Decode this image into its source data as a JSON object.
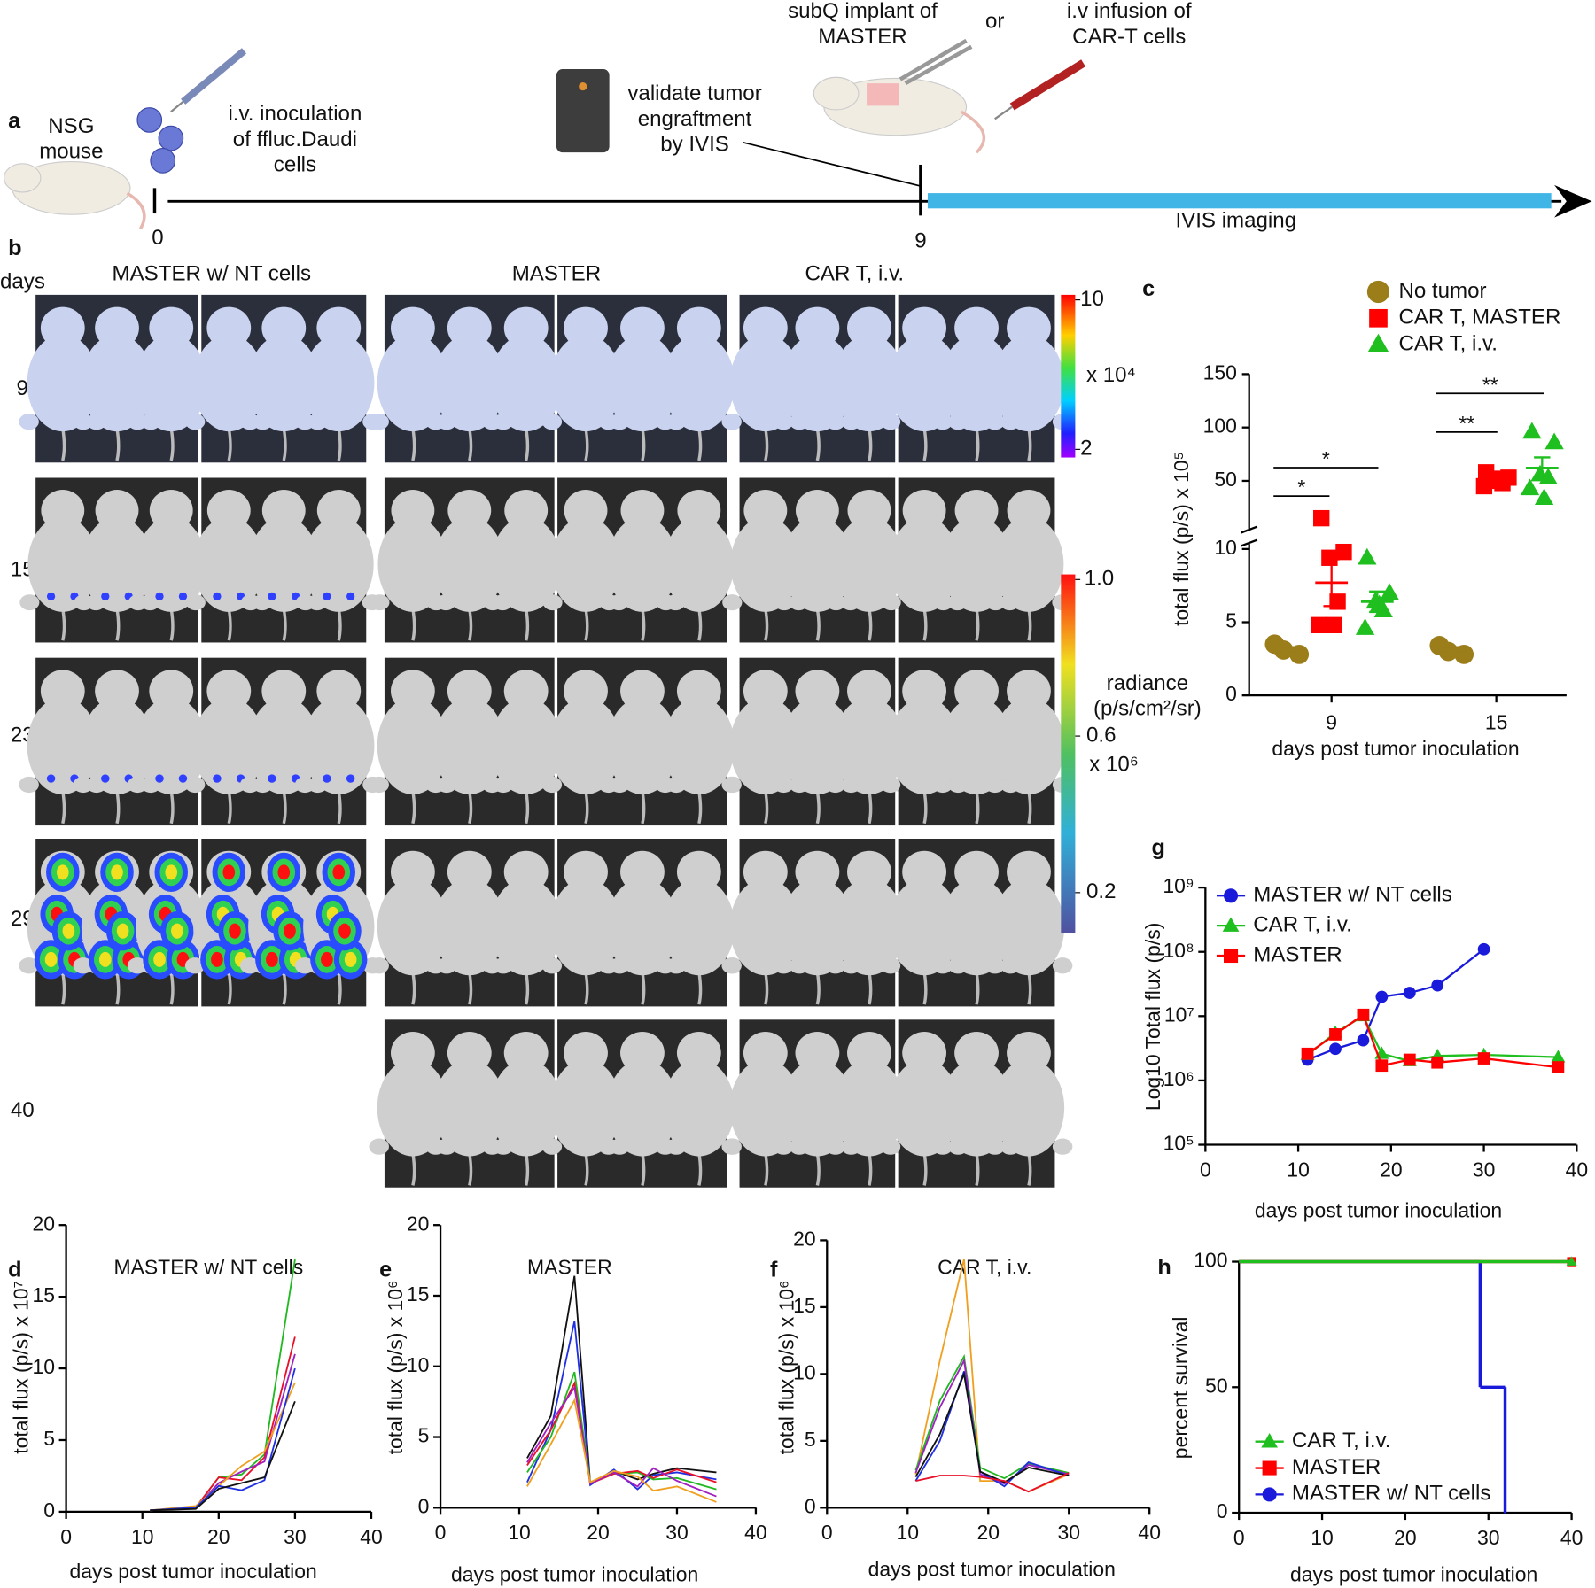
{
  "timeline": {
    "panel": "a",
    "subject": [
      "NSG",
      "mouse"
    ],
    "step1": [
      "i.v. inoculation",
      "of ffluc.Daudi",
      "cells"
    ],
    "step2": [
      "validate tumor",
      "engraftment",
      "by IVIS"
    ],
    "step3a": [
      "subQ implant of",
      "MASTER"
    ],
    "or": "or",
    "step3b": [
      "i.v infusion of",
      "CAR-T cells"
    ],
    "ticks": [
      0,
      9
    ],
    "imaging": "IVIS imaging"
  },
  "imaging": {
    "panel": "b",
    "axis_label": "days",
    "groups": [
      "MASTER w/ NT cells",
      "MASTER",
      "CAR T, i.v."
    ],
    "days": [
      9,
      15,
      23,
      29,
      40
    ],
    "colorbars": [
      {
        "lim": [
          2,
          10
        ],
        "ticks": [
          10,
          2
        ],
        "multiplier": "x 10⁴"
      },
      {
        "lim": [
          0.2,
          1
        ],
        "ticks": [
          {
            "value": 1,
            "label": "1.0"
          },
          0.6,
          0.2
        ],
        "label": [
          "radiance",
          "(p/s/cm²/sr)"
        ],
        "multiplier": "x 10⁶"
      }
    ]
  },
  "chart_data": [
    {
      "panel": "c",
      "type": "scatter",
      "categories": [
        "9",
        "15"
      ],
      "xlabel": "days post tumor inoculation",
      "ylabel": "total flux (p/s) x 10⁵",
      "ysegments": [
        {
          "ylim": [
            0,
            10
          ],
          "yticks": [
            0,
            5,
            10
          ]
        },
        {
          "ylim": [
            10,
            150
          ],
          "yticks": [
            50,
            100,
            150
          ]
        }
      ],
      "legend": "top",
      "series": [
        {
          "name": "No tumor",
          "color": "#9b7d1a",
          "marker": "circle",
          "values": [
            [
              3.5,
              2.8,
              3.1
            ],
            [
              3.4,
              2.8,
              3.0
            ]
          ],
          "mean": [
            3.1,
            3.1
          ],
          "sem": [
            0.2,
            0.2
          ]
        },
        {
          "name": "CAR T, MASTER",
          "color": "#ff0000",
          "marker": "square",
          "values": [
            [
              15,
              9.8,
              9.4,
              6.4,
              4.8,
              4.8
            ],
            [
              58,
              53,
              50,
              48,
              45,
              52
            ]
          ],
          "mean": [
            7.7,
            51
          ],
          "sem": [
            1.6,
            2
          ]
        },
        {
          "name": "CAR T, i.v.",
          "color": "#1fbf1f",
          "marker": "triangle",
          "values": [
            [
              9.4,
              7.0,
              6.4,
              5.8,
              4.6,
              6.2
            ],
            [
              96,
              86,
              56,
              53,
              43,
              34
            ]
          ],
          "mean": [
            6.4,
            62
          ],
          "sem": [
            0.7,
            10
          ]
        }
      ],
      "annotations": [
        "*",
        "*",
        "**",
        "**"
      ]
    },
    {
      "panel": "g",
      "type": "line",
      "log": true,
      "xlabel": "days post tumor inoculation",
      "ylabel": "Log10 Total flux (p/s)",
      "xlim": [
        0,
        40
      ],
      "xticks": [
        0,
        10,
        20,
        30,
        40
      ],
      "ylim": [
        100000,
        1000000000
      ],
      "yticks": [
        {
          "value": 100000,
          "label": "10⁵"
        },
        {
          "value": 1000000,
          "label": "10⁶"
        },
        {
          "value": 10000000,
          "label": "10⁷"
        },
        {
          "value": 100000000,
          "label": "10⁸"
        },
        {
          "value": 1000000000,
          "label": "10⁹"
        }
      ],
      "legend": "upper left",
      "series": [
        {
          "name": "MASTER w/ NT cells",
          "color": "#1a1adb",
          "marker": "circle",
          "x": [
            11,
            14,
            17,
            19,
            22,
            25,
            30
          ],
          "values": [
            2100000,
            3100000,
            4200000,
            20000000,
            23000000,
            30000000,
            110000000
          ]
        },
        {
          "name": "CAR T, i.v.",
          "color": "#1fbf1f",
          "marker": "triangle",
          "x": [
            11,
            14,
            17,
            19,
            22,
            25,
            30,
            38
          ],
          "values": [
            2500000,
            5500000,
            10000000,
            2600000,
            2000000,
            2400000,
            2500000,
            2300000
          ]
        },
        {
          "name": "MASTER",
          "color": "#ff0000",
          "marker": "square",
          "x": [
            11,
            14,
            17,
            19,
            22,
            25,
            30,
            38
          ],
          "values": [
            2600000,
            5200000,
            10500000,
            1700000,
            2100000,
            1900000,
            2200000,
            1600000
          ]
        }
      ]
    },
    {
      "panel": "d",
      "type": "line",
      "title": "MASTER w/ NT cells",
      "xlabel": "days post tumor inoculation",
      "ylabel": "total flux (p/s) x 10⁷",
      "xlim": [
        0,
        40
      ],
      "xticks": [
        0,
        10,
        20,
        30,
        40
      ],
      "ylim": [
        0,
        20
      ],
      "yticks": [
        0,
        5,
        10,
        15,
        20
      ],
      "x": [
        11,
        17,
        20,
        23,
        26,
        30
      ],
      "series": [
        {
          "color": "#22b822",
          "values": [
            0.1,
            0.3,
            2.4,
            2.6,
            4.0,
            17.6
          ]
        },
        {
          "color": "#e8102a",
          "values": [
            0.1,
            0.3,
            2.4,
            2.2,
            3.8,
            12.2
          ]
        },
        {
          "color": "#a020c0",
          "values": [
            0.1,
            0.3,
            2.0,
            2.8,
            3.5,
            11.0
          ]
        },
        {
          "color": "#f0a020",
          "values": [
            0.1,
            0.4,
            1.8,
            3.2,
            4.2,
            9.0
          ]
        },
        {
          "color": "#2030e0",
          "values": [
            0.1,
            0.3,
            1.8,
            1.5,
            2.2,
            10.0
          ]
        },
        {
          "color": "#111111",
          "values": [
            0.1,
            0.2,
            1.6,
            2.0,
            2.4,
            7.7
          ]
        }
      ]
    },
    {
      "panel": "e",
      "type": "line",
      "title": "MASTER",
      "xlabel": "days post tumor inoculation",
      "ylabel": "total flux (p/s) x 10⁶",
      "xlim": [
        0,
        40
      ],
      "xticks": [
        0,
        10,
        20,
        30,
        40
      ],
      "ylim": [
        0,
        20
      ],
      "yticks": [
        0,
        5,
        10,
        15,
        20
      ],
      "x": [
        11,
        14,
        17,
        19,
        22,
        25,
        27,
        30,
        35
      ],
      "series": [
        {
          "color": "#111111",
          "values": [
            3.5,
            6.5,
            16.4,
            1.7,
            2.6,
            2.0,
            2.4,
            2.8,
            2.5
          ]
        },
        {
          "color": "#2030e0",
          "values": [
            1.8,
            5.5,
            13.2,
            1.6,
            2.7,
            1.3,
            2.3,
            2.5,
            2.0
          ]
        },
        {
          "color": "#22b822",
          "values": [
            2.5,
            5.0,
            9.6,
            1.8,
            2.4,
            2.5,
            2.0,
            2.1,
            1.3
          ]
        },
        {
          "color": "#e8102a",
          "values": [
            3.0,
            5.5,
            8.8,
            1.7,
            2.4,
            2.6,
            2.1,
            2.7,
            1.8
          ]
        },
        {
          "color": "#a020c0",
          "values": [
            3.2,
            6.0,
            8.5,
            1.7,
            2.5,
            1.5,
            2.8,
            1.9,
            0.8
          ]
        },
        {
          "color": "#f0a020",
          "values": [
            1.5,
            4.5,
            7.6,
            1.8,
            2.6,
            2.2,
            1.2,
            1.5,
            0.4
          ]
        }
      ]
    },
    {
      "panel": "f",
      "type": "line",
      "title": "CAR T, i.v.",
      "xlabel": "days post tumor inoculation",
      "ylabel": "total flux (p/s) x 10⁶",
      "xlim": [
        0,
        40
      ],
      "xticks": [
        0,
        10,
        20,
        30,
        40
      ],
      "ylim": [
        0,
        20
      ],
      "yticks": [
        0,
        5,
        10,
        15,
        20
      ],
      "x": [
        11,
        14,
        17,
        19,
        22,
        25,
        30
      ],
      "series": [
        {
          "color": "#f0a020",
          "values": [
            2.5,
            11.0,
            18.6,
            2.0,
            2.0,
            1.2,
            2.5
          ]
        },
        {
          "color": "#22b822",
          "values": [
            2.8,
            8.0,
            11.3,
            3.0,
            2.2,
            3.3,
            2.6
          ]
        },
        {
          "color": "#a020c0",
          "values": [
            2.6,
            7.5,
            11.0,
            2.5,
            1.8,
            3.2,
            2.5
          ]
        },
        {
          "color": "#2030e0",
          "values": [
            2.0,
            5.0,
            10.2,
            2.7,
            1.6,
            3.4,
            2.4
          ]
        },
        {
          "color": "#111111",
          "values": [
            2.3,
            5.5,
            10.0,
            2.7,
            1.9,
            3.0,
            2.4
          ]
        },
        {
          "color": "#e8102a",
          "values": [
            2.0,
            2.4,
            2.4,
            2.3,
            2.0,
            1.2,
            2.6
          ]
        }
      ]
    },
    {
      "panel": "h",
      "type": "step",
      "xlabel": "days post tumor inoculation",
      "ylabel": "percent survival",
      "xlim": [
        0,
        40
      ],
      "xticks": [
        0,
        10,
        20,
        30,
        40
      ],
      "ylim": [
        0,
        100
      ],
      "yticks": [
        0,
        50,
        100
      ],
      "legend": "lower left",
      "series": [
        {
          "name": "CAR T, i.v.",
          "color": "#1fbf1f",
          "marker": "triangle",
          "x": [
            0,
            40
          ],
          "values": [
            100,
            100
          ]
        },
        {
          "name": "MASTER",
          "color": "#ff0000",
          "marker": "square",
          "x": [
            0,
            40
          ],
          "values": [
            100,
            100
          ]
        },
        {
          "name": "MASTER w/ NT cells",
          "color": "#1a1adb",
          "marker": "circle",
          "x": [
            0,
            29,
            32
          ],
          "values": [
            100,
            50,
            0
          ]
        }
      ]
    }
  ]
}
